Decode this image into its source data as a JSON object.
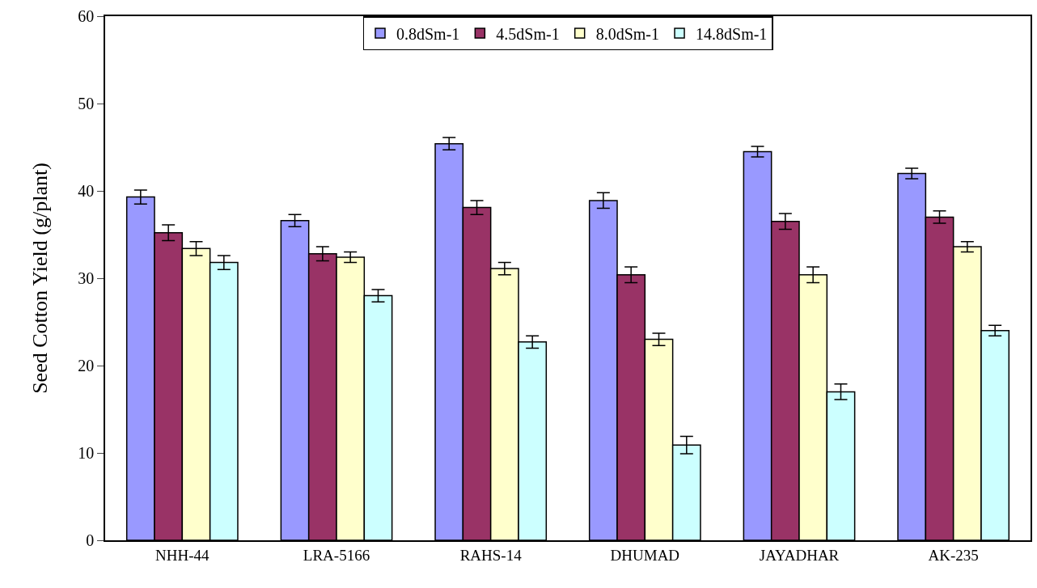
{
  "chart_data": {
    "type": "bar",
    "ylabel": "Seed Cotton Yield (g/plant)",
    "categories": [
      "NHH-44",
      "LRA-5166",
      "RAHS-14",
      "DHUMAD",
      "JAYADHAR",
      "AK-235"
    ],
    "series": [
      {
        "name": "0.8dSm-1",
        "color": "#9999ff",
        "values": [
          39.3,
          36.6,
          45.4,
          38.9,
          44.5,
          42.0
        ],
        "errors": [
          0.8,
          0.7,
          0.7,
          0.9,
          0.6,
          0.6
        ]
      },
      {
        "name": "4.5dSm-1",
        "color": "#993366",
        "values": [
          35.2,
          32.8,
          38.1,
          30.4,
          36.5,
          37.0
        ],
        "errors": [
          0.9,
          0.8,
          0.8,
          0.9,
          0.9,
          0.7
        ]
      },
      {
        "name": "8.0dSm-1",
        "color": "#ffffcc",
        "values": [
          33.4,
          32.4,
          31.1,
          23.0,
          30.4,
          33.6
        ],
        "errors": [
          0.8,
          0.6,
          0.7,
          0.7,
          0.9,
          0.6
        ]
      },
      {
        "name": "14.8dSm-1",
        "color": "#ccffff",
        "values": [
          31.8,
          28.0,
          22.7,
          10.9,
          17.0,
          24.0
        ],
        "errors": [
          0.8,
          0.7,
          0.7,
          1.0,
          0.9,
          0.6
        ]
      }
    ],
    "ylim": [
      0,
      60
    ],
    "yticks": [
      0,
      10,
      20,
      30,
      40,
      50,
      60
    ],
    "grid": false,
    "legend": "top"
  }
}
